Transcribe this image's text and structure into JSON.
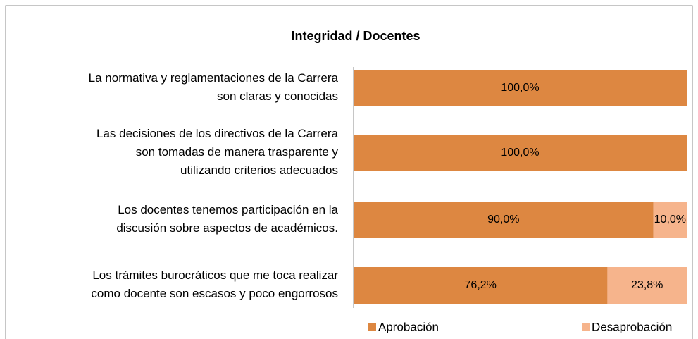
{
  "chart_data": {
    "type": "stacked-barh",
    "title": "Integridad / Docentes",
    "categories": [
      [
        "La normativa y reglamentaciones de la Carrera",
        "son claras y conocidas"
      ],
      [
        "Las decisiones de los directivos de la Carrera",
        "son tomadas de manera trasparente y",
        "utilizando criterios adecuados"
      ],
      [
        "Los docentes tenemos participación en la",
        "discusión sobre aspectos de académicos."
      ],
      [
        "Los trámites burocráticos que me toca realizar",
        "como docente son escasos y poco engorrosos"
      ]
    ],
    "series": [
      {
        "name": "Aprobación",
        "color": "#dd8741",
        "values": [
          100,
          100,
          90,
          76.2
        ],
        "value_labels": [
          "100,0%",
          "100,0%",
          "90,0%",
          "76,2%"
        ]
      },
      {
        "name": "Desaprobación",
        "color": "#f6b48c",
        "values": [
          0,
          0,
          10,
          23.8
        ],
        "value_labels": [
          null,
          null,
          "10,0%",
          "23,8%"
        ]
      }
    ],
    "xlim": [
      0,
      100
    ],
    "legend": "bottom"
  }
}
